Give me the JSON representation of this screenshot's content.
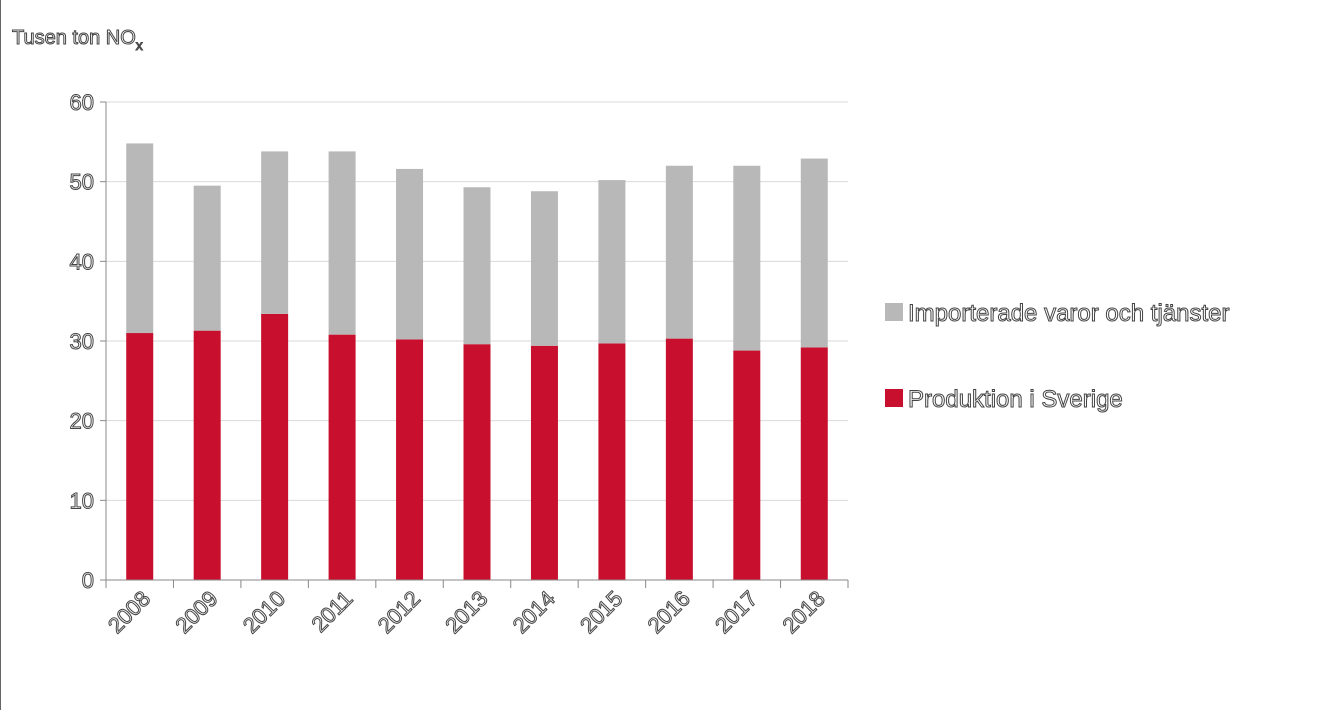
{
  "chart_data": {
    "type": "bar",
    "stacked": true,
    "ylabel": "Tusen ton NO",
    "ylabel_subscript": "x",
    "ylim": [
      0,
      60
    ],
    "yticks": [
      0,
      10,
      20,
      30,
      40,
      50,
      60
    ],
    "grid": true,
    "legend_position": "right",
    "categories": [
      "2008",
      "2009",
      "2010",
      "2011",
      "2012",
      "2013",
      "2014",
      "2015",
      "2016",
      "2017",
      "2018"
    ],
    "series": [
      {
        "name": "Produktion i Sverige",
        "color": "#c8102e",
        "values": [
          31.0,
          31.3,
          33.4,
          30.8,
          30.2,
          29.6,
          29.4,
          29.7,
          30.3,
          28.8,
          29.2
        ]
      },
      {
        "name": "Importerade varor och tjänster",
        "color": "#b8b8b8",
        "values": [
          23.8,
          18.2,
          20.4,
          23.0,
          21.4,
          19.7,
          19.4,
          20.5,
          21.7,
          23.2,
          23.7
        ]
      }
    ]
  }
}
